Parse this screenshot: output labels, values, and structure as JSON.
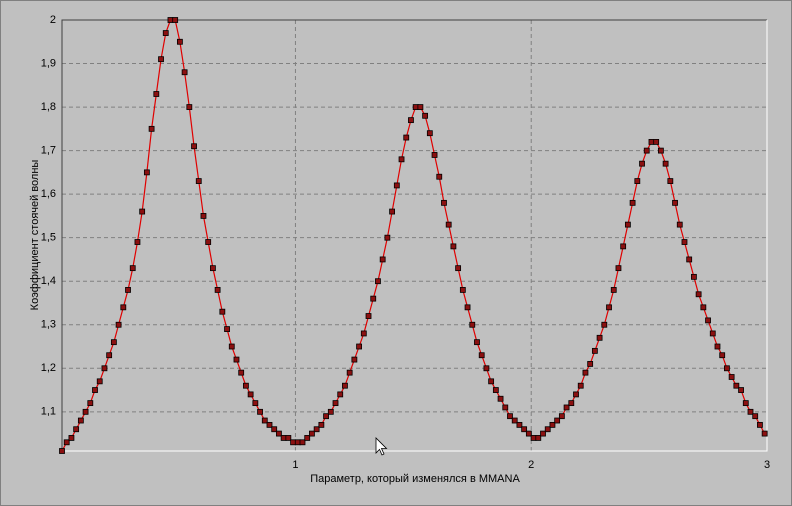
{
  "chart_data": {
    "type": "line",
    "x_label": "Параметр, который изменялся в MMANA",
    "y_label": "Коэффициент стоячей волны",
    "x": [
      0.01,
      0.03,
      0.05,
      0.07,
      0.09,
      0.11,
      0.13,
      0.15,
      0.17,
      0.19,
      0.21,
      0.23,
      0.25,
      0.27,
      0.29,
      0.31,
      0.33,
      0.35,
      0.37,
      0.39,
      0.41,
      0.43,
      0.45,
      0.47,
      0.49,
      0.51,
      0.53,
      0.55,
      0.57,
      0.59,
      0.61,
      0.63,
      0.65,
      0.67,
      0.69,
      0.71,
      0.73,
      0.75,
      0.77,
      0.79,
      0.81,
      0.83,
      0.85,
      0.87,
      0.89,
      0.91,
      0.93,
      0.95,
      0.97,
      0.99,
      1.01,
      1.03,
      1.05,
      1.07,
      1.09,
      1.11,
      1.13,
      1.15,
      1.17,
      1.19,
      1.21,
      1.23,
      1.25,
      1.27,
      1.29,
      1.31,
      1.33,
      1.35,
      1.37,
      1.39,
      1.41,
      1.43,
      1.45,
      1.47,
      1.49,
      1.51,
      1.53,
      1.55,
      1.57,
      1.59,
      1.61,
      1.63,
      1.65,
      1.67,
      1.69,
      1.71,
      1.73,
      1.75,
      1.77,
      1.79,
      1.81,
      1.83,
      1.85,
      1.87,
      1.89,
      1.91,
      1.93,
      1.95,
      1.97,
      1.99,
      2.01,
      2.03,
      2.05,
      2.07,
      2.09,
      2.11,
      2.13,
      2.15,
      2.17,
      2.19,
      2.21,
      2.23,
      2.25,
      2.27,
      2.29,
      2.31,
      2.33,
      2.35,
      2.37,
      2.39,
      2.41,
      2.43,
      2.45,
      2.47,
      2.49,
      2.51,
      2.53,
      2.55,
      2.57,
      2.59,
      2.61,
      2.63,
      2.65,
      2.67,
      2.69,
      2.71,
      2.73,
      2.75,
      2.77,
      2.79,
      2.81,
      2.83,
      2.85,
      2.87,
      2.89,
      2.91,
      2.93,
      2.95,
      2.97,
      2.99
    ],
    "series": [
      {
        "color": "#e00000",
        "marker_color": "#8b1010",
        "values": [
          1.01,
          1.03,
          1.04,
          1.06,
          1.08,
          1.1,
          1.12,
          1.15,
          1.17,
          1.2,
          1.23,
          1.26,
          1.3,
          1.34,
          1.38,
          1.43,
          1.49,
          1.56,
          1.65,
          1.75,
          1.83,
          1.91,
          1.97,
          2.0,
          2.0,
          1.95,
          1.88,
          1.8,
          1.71,
          1.63,
          1.55,
          1.49,
          1.43,
          1.38,
          1.33,
          1.29,
          1.25,
          1.22,
          1.19,
          1.16,
          1.14,
          1.12,
          1.1,
          1.08,
          1.07,
          1.06,
          1.05,
          1.04,
          1.04,
          1.03,
          1.03,
          1.03,
          1.04,
          1.05,
          1.06,
          1.07,
          1.09,
          1.1,
          1.12,
          1.14,
          1.16,
          1.19,
          1.22,
          1.25,
          1.28,
          1.32,
          1.36,
          1.4,
          1.45,
          1.5,
          1.56,
          1.62,
          1.68,
          1.73,
          1.77,
          1.8,
          1.8,
          1.78,
          1.74,
          1.69,
          1.64,
          1.58,
          1.53,
          1.48,
          1.43,
          1.38,
          1.34,
          1.3,
          1.26,
          1.23,
          1.2,
          1.17,
          1.15,
          1.13,
          1.11,
          1.09,
          1.08,
          1.07,
          1.06,
          1.05,
          1.04,
          1.04,
          1.05,
          1.06,
          1.07,
          1.08,
          1.09,
          1.11,
          1.12,
          1.14,
          1.16,
          1.19,
          1.21,
          1.24,
          1.27,
          1.3,
          1.34,
          1.38,
          1.43,
          1.48,
          1.53,
          1.58,
          1.63,
          1.67,
          1.7,
          1.72,
          1.72,
          1.7,
          1.67,
          1.63,
          1.58,
          1.53,
          1.49,
          1.45,
          1.41,
          1.37,
          1.34,
          1.31,
          1.28,
          1.25,
          1.23,
          1.2,
          1.18,
          1.16,
          1.15,
          1.12,
          1.1,
          1.09,
          1.07,
          1.05
        ]
      }
    ],
    "xlim": [
      0.01,
      3
    ],
    "ylim": [
      1.01,
      2
    ],
    "xticks": [
      1,
      2,
      3
    ],
    "yticks": [
      {
        "value": 1.1,
        "label": "1,1"
      },
      {
        "value": 1.2,
        "label": "1,2"
      },
      {
        "value": 1.3,
        "label": "1,3"
      },
      {
        "value": 1.4,
        "label": "1,4"
      },
      {
        "value": 1.5,
        "label": "1,5"
      },
      {
        "value": 1.6,
        "label": "1,6"
      },
      {
        "value": 1.7,
        "label": "1,7"
      },
      {
        "value": 1.8,
        "label": "1,8"
      },
      {
        "value": 1.9,
        "label": "1,9"
      },
      2
    ],
    "grid": true
  }
}
